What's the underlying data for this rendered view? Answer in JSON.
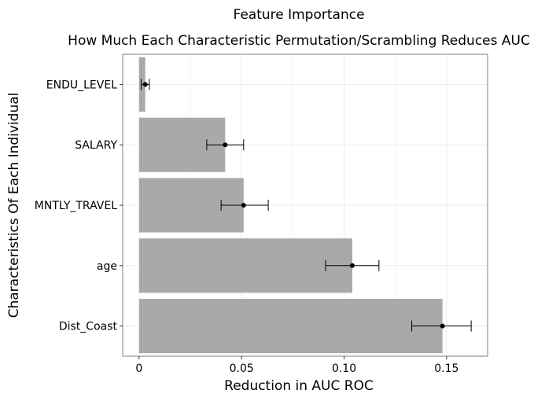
{
  "chart_data": {
    "type": "bar",
    "orientation": "horizontal",
    "title": "Feature Importance",
    "subtitle": "How Much Each Characteristic Permutation/Scrambling Reduces AUC",
    "xlabel": "Reduction in AUC ROC",
    "ylabel": "Characteristics Of Each Individual",
    "categories": [
      "ENDU_LEVEL",
      "SALARY",
      "MNTLY_TRAVEL",
      "age",
      "Dist_Coast"
    ],
    "values": [
      0.003,
      0.042,
      0.051,
      0.104,
      0.148
    ],
    "error_low": [
      0.001,
      0.033,
      0.04,
      0.091,
      0.133
    ],
    "error_high": [
      0.005,
      0.051,
      0.063,
      0.117,
      0.162
    ],
    "xlim": [
      -0.008,
      0.17
    ],
    "xticks": [
      0,
      0.05,
      0.1,
      0.15
    ],
    "xtick_labels": [
      "0",
      "0.05",
      "0.10",
      "0.15"
    ],
    "grid": true,
    "colors": {
      "bar": "#a9a9a9",
      "grid": "#ebebeb",
      "panel_border": "#7f7f7f",
      "point": "#000000"
    }
  }
}
